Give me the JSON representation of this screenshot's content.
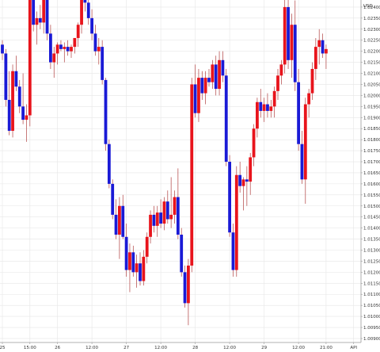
{
  "chart_data": {
    "type": "candlestick",
    "unit_label": "USD",
    "colors": {
      "up": "#e8141c",
      "down": "#1a1ad6",
      "wick": "#b04040",
      "grid": "#e6e6e6",
      "axis": "#999999"
    },
    "y_ticks": [
      "1.02400",
      "1.02350",
      "1.02300",
      "1.02250",
      "1.02200",
      "1.02150",
      "1.02100",
      "1.02050",
      "1.02000",
      "1.01950",
      "1.01900",
      "1.01850",
      "1.01800",
      "1.01750",
      "1.01700",
      "1.01650",
      "1.01600",
      "1.01550",
      "1.01500",
      "1.01450",
      "1.01400",
      "1.01350",
      "1.01300",
      "1.01250",
      "1.01200",
      "1.01150",
      "1.01100",
      "1.01050",
      "1.01000",
      "1.00950",
      "1.00900"
    ],
    "ylim": [
      1.00882,
      1.02432
    ],
    "x_ticks": [
      "25",
      "15:00",
      "26",
      "12:00",
      "27",
      "12:00",
      "28",
      "12:00",
      "29",
      "12:00",
      "21:00",
      "API"
    ],
    "x_tick_index": [
      0,
      8,
      16,
      26,
      36,
      46,
      56,
      66,
      76,
      86,
      94,
      102
    ],
    "candles": [
      [
        1.0223,
        1.0225,
        1.0216,
        1.0219
      ],
      [
        1.0219,
        1.0221,
        1.0195,
        1.0198
      ],
      [
        1.0198,
        1.0211,
        1.0182,
        1.0184
      ],
      [
        1.0184,
        1.0214,
        1.0181,
        1.0211
      ],
      [
        1.0211,
        1.0218,
        1.0202,
        1.0204
      ],
      [
        1.0204,
        1.0207,
        1.0192,
        1.0195
      ],
      [
        1.0195,
        1.021,
        1.0187,
        1.0189
      ],
      [
        1.0189,
        1.0196,
        1.0179,
        1.0191
      ],
      [
        1.0191,
        1.0251,
        1.0186,
        1.0248
      ],
      [
        1.0248,
        1.0252,
        1.0229,
        1.0232
      ],
      [
        1.0232,
        1.0238,
        1.0223,
        1.0235
      ],
      [
        1.0235,
        1.0241,
        1.023,
        1.0233
      ],
      [
        1.0233,
        1.0262,
        1.0228,
        1.0258
      ],
      [
        1.0258,
        1.0265,
        1.0225,
        1.0228
      ],
      [
        1.0228,
        1.0232,
        1.0212,
        1.0215
      ],
      [
        1.0215,
        1.0222,
        1.0208,
        1.0219
      ],
      [
        1.0219,
        1.0224,
        1.0214,
        1.0223
      ],
      [
        1.0223,
        1.0225,
        1.022,
        1.0221
      ],
      [
        1.0221,
        1.0224,
        1.0215,
        1.0222
      ],
      [
        1.0222,
        1.0225,
        1.0218,
        1.022
      ],
      [
        1.022,
        1.0223,
        1.0217,
        1.0222
      ],
      [
        1.0222,
        1.0226,
        1.0219,
        1.0226
      ],
      [
        1.0226,
        1.0233,
        1.0222,
        1.0232
      ],
      [
        1.0232,
        1.0255,
        1.0228,
        1.0249
      ],
      [
        1.0249,
        1.0254,
        1.0238,
        1.0242
      ],
      [
        1.0242,
        1.0245,
        1.0232,
        1.0235
      ],
      [
        1.0235,
        1.0239,
        1.0225,
        1.0228
      ],
      [
        1.0228,
        1.0232,
        1.0218,
        1.022
      ],
      [
        1.022,
        1.0226,
        1.0214,
        1.0222
      ],
      [
        1.0222,
        1.0225,
        1.0205,
        1.0207
      ],
      [
        1.0207,
        1.0208,
        1.0175,
        1.0178
      ],
      [
        1.0178,
        1.018,
        1.0158,
        1.016
      ],
      [
        1.016,
        1.0162,
        1.0144,
        1.0146
      ],
      [
        1.0146,
        1.0153,
        1.0135,
        1.0137
      ],
      [
        1.0137,
        1.0154,
        1.0126,
        1.015
      ],
      [
        1.015,
        1.0155,
        1.0135,
        1.0136
      ],
      [
        1.0136,
        1.0142,
        1.0118,
        1.0121
      ],
      [
        1.0121,
        1.0133,
        1.0111,
        1.0129
      ],
      [
        1.0129,
        1.0132,
        1.0118,
        1.012
      ],
      [
        1.012,
        1.0128,
        1.0113,
        1.0124
      ],
      [
        1.0124,
        1.0129,
        1.0114,
        1.0116
      ],
      [
        1.0116,
        1.013,
        1.0114,
        1.0127
      ],
      [
        1.0127,
        1.0138,
        1.0124,
        1.0136
      ],
      [
        1.0136,
        1.0148,
        1.0133,
        1.0146
      ],
      [
        1.0146,
        1.015,
        1.0138,
        1.0141
      ],
      [
        1.0141,
        1.015,
        1.0136,
        1.0147
      ],
      [
        1.0147,
        1.0153,
        1.014,
        1.0142
      ],
      [
        1.0142,
        1.0154,
        1.0139,
        1.0152
      ],
      [
        1.0152,
        1.0157,
        1.0142,
        1.0144
      ],
      [
        1.0144,
        1.0163,
        1.014,
        1.0146
      ],
      [
        1.0146,
        1.0157,
        1.0142,
        1.0154
      ],
      [
        1.0154,
        1.0167,
        1.0135,
        1.0137
      ],
      [
        1.0137,
        1.014,
        1.0118,
        1.012
      ],
      [
        1.012,
        1.0123,
        1.0104,
        1.0106
      ],
      [
        1.0106,
        1.0126,
        1.0096,
        1.0123
      ],
      [
        1.0123,
        1.0208,
        1.012,
        1.0205
      ],
      [
        1.0205,
        1.0214,
        1.019,
        1.0192
      ],
      [
        1.0192,
        1.0212,
        1.0188,
        1.0208
      ],
      [
        1.0208,
        1.0211,
        1.0198,
        1.0201
      ],
      [
        1.0201,
        1.0211,
        1.0196,
        1.0208
      ],
      [
        1.0208,
        1.0212,
        1.0204,
        1.0206
      ],
      [
        1.0206,
        1.0216,
        1.0203,
        1.0214
      ],
      [
        1.0214,
        1.0218,
        1.02,
        1.0203
      ],
      [
        1.0203,
        1.022,
        1.02,
        1.0216
      ],
      [
        1.0216,
        1.022,
        1.0206,
        1.0209
      ],
      [
        1.0209,
        1.0212,
        1.0168,
        1.017
      ],
      [
        1.017,
        1.0173,
        1.0136,
        1.0138
      ],
      [
        1.0138,
        1.0142,
        1.0118,
        1.0121
      ],
      [
        1.0121,
        1.0168,
        1.0118,
        1.0164
      ],
      [
        1.0164,
        1.017,
        1.0156,
        1.0159
      ],
      [
        1.0159,
        1.0163,
        1.0148,
        1.0162
      ],
      [
        1.0162,
        1.0168,
        1.015,
        1.0161
      ],
      [
        1.0161,
        1.0174,
        1.0155,
        1.0172
      ],
      [
        1.0172,
        1.0187,
        1.0168,
        1.0185
      ],
      [
        1.0185,
        1.0199,
        1.0181,
        1.0197
      ],
      [
        1.0197,
        1.0203,
        1.019,
        1.0193
      ],
      [
        1.0193,
        1.0199,
        1.0188,
        1.0196
      ],
      [
        1.0196,
        1.0201,
        1.019,
        1.0193
      ],
      [
        1.0193,
        1.0198,
        1.019,
        1.0195
      ],
      [
        1.0195,
        1.0204,
        1.019,
        1.0202
      ],
      [
        1.0202,
        1.0212,
        1.0198,
        1.0209
      ],
      [
        1.0209,
        1.0216,
        1.0205,
        1.0214
      ],
      [
        1.0214,
        1.0244,
        1.021,
        1.024
      ],
      [
        1.024,
        1.0249,
        1.0212,
        1.0216
      ],
      [
        1.0216,
        1.0237,
        1.0208,
        1.0232
      ],
      [
        1.0232,
        1.0243,
        1.0202,
        1.0206
      ],
      [
        1.0206,
        1.0212,
        1.0175,
        1.0178
      ],
      [
        1.0178,
        1.0184,
        1.016,
        1.0162
      ],
      [
        1.0162,
        1.0199,
        1.0151,
        1.0196
      ],
      [
        1.0196,
        1.0203,
        1.019,
        1.0201
      ],
      [
        1.0201,
        1.0215,
        1.0198,
        1.0212
      ],
      [
        1.0212,
        1.0226,
        1.0207,
        1.0222
      ],
      [
        1.0222,
        1.023,
        1.0214,
        1.0225
      ],
      [
        1.0225,
        1.0228,
        1.0217,
        1.0219
      ],
      [
        1.0219,
        1.0223,
        1.0212,
        1.0221
      ]
    ]
  }
}
